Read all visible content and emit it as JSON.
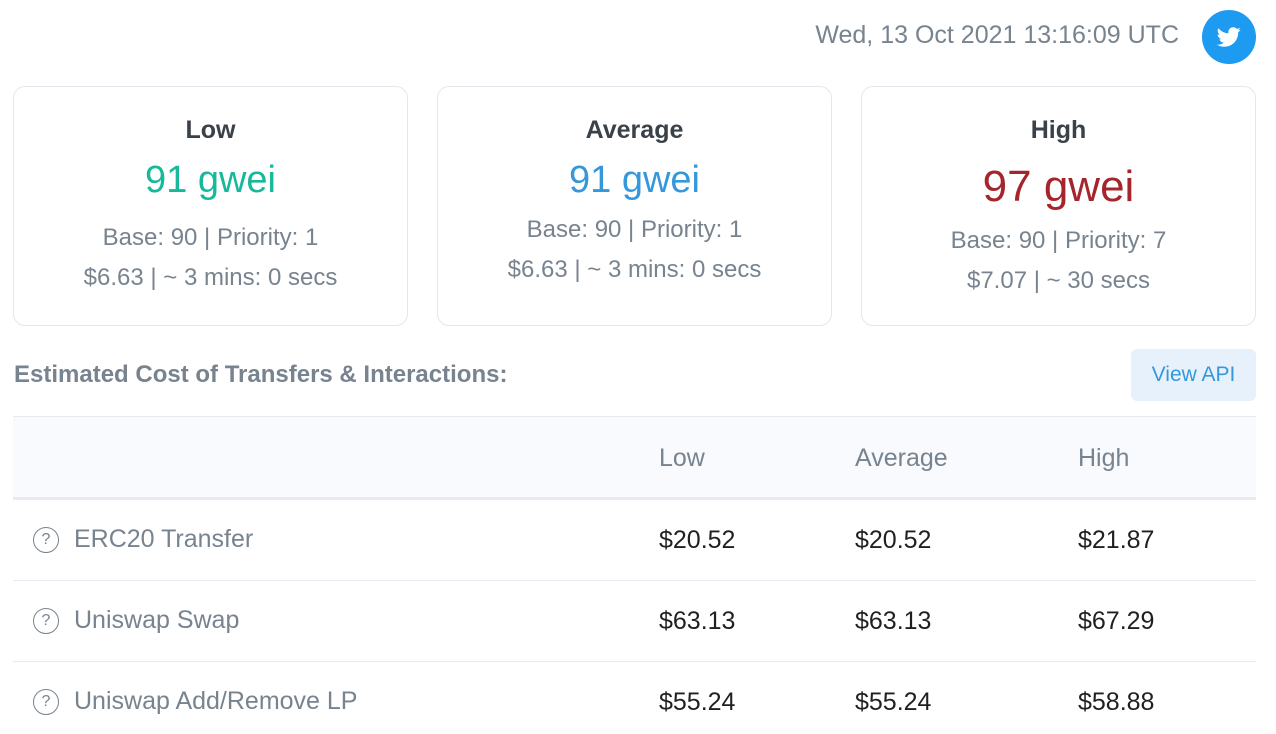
{
  "header": {
    "timestamp": "Wed, 13 Oct 2021 13:16:09 UTC",
    "twitter_icon": "twitter-bird-icon",
    "twitter_color": "#1d9bf0"
  },
  "cards": [
    {
      "title": "Low",
      "gwei": "91 gwei",
      "base_priority": "Base: 90 | Priority: 1",
      "cost_time": "$6.63 | ~ 3 mins: 0 secs",
      "color": "#16b99a"
    },
    {
      "title": "Average",
      "gwei": "91 gwei",
      "base_priority": "Base: 90 | Priority: 1",
      "cost_time": "$6.63 | ~ 3 mins: 0 secs",
      "color": "#3498db"
    },
    {
      "title": "High",
      "gwei": "97 gwei",
      "base_priority": "Base: 90 | Priority: 7",
      "cost_time": "$7.07 | ~ 30 secs",
      "color": "#a4262c"
    }
  ],
  "section": {
    "title": "Estimated Cost of Transfers & Interactions:",
    "view_api_label": "View API"
  },
  "table": {
    "headers": [
      "",
      "Low",
      "Average",
      "High"
    ],
    "rows": [
      {
        "name": "ERC20 Transfer",
        "low": "$20.52",
        "average": "$20.52",
        "high": "$21.87"
      },
      {
        "name": "Uniswap Swap",
        "low": "$63.13",
        "average": "$63.13",
        "high": "$67.29"
      },
      {
        "name": "Uniswap Add/Remove LP",
        "low": "$55.24",
        "average": "$55.24",
        "high": "$58.88"
      }
    ],
    "help_glyph": "?"
  }
}
